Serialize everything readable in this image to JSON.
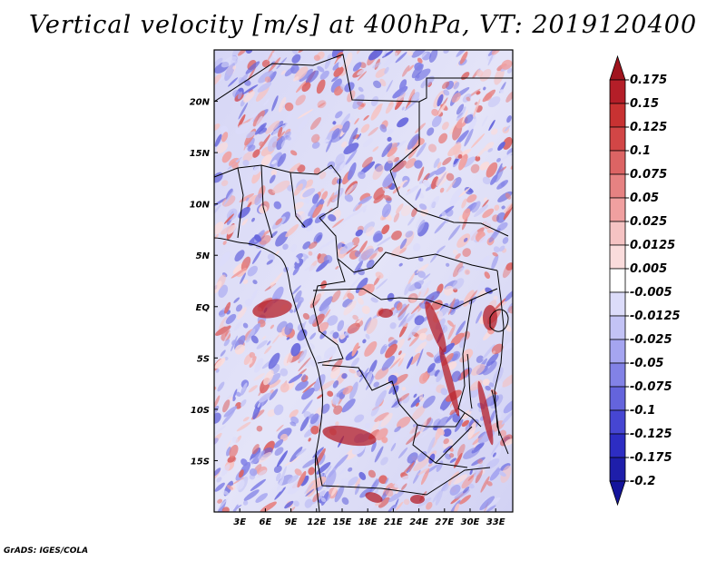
{
  "title": "Vertical velocity [m/s] at 400hPa, VT: 2019120400",
  "credit": "GrADS: IGES/COLA",
  "lat_ticks": [
    "20N",
    "15N",
    "10N",
    "5N",
    "EQ",
    "5S",
    "10S",
    "15S"
  ],
  "lat_values": [
    20,
    15,
    10,
    5,
    0,
    -5,
    -10,
    -15
  ],
  "lon_ticks": [
    "3E",
    "6E",
    "9E",
    "12E",
    "15E",
    "18E",
    "21E",
    "24E",
    "27E",
    "30E",
    "33E"
  ],
  "lon_values": [
    3,
    6,
    9,
    12,
    15,
    18,
    21,
    24,
    27,
    30,
    33
  ],
  "map_extent": {
    "lon_min": 0,
    "lon_max": 35,
    "lat_min": -20,
    "lat_max": 25
  },
  "colorbar": {
    "labels": [
      "0.175",
      "0.15",
      "0.125",
      "0.1",
      "0.075",
      "0.05",
      "0.025",
      "0.0125",
      "0.005",
      "-0.005",
      "-0.0125",
      "-0.025",
      "-0.05",
      "-0.075",
      "-0.1",
      "-0.125",
      "-0.175",
      "-0.2"
    ],
    "colors": [
      "#a0141e",
      "#b41e28",
      "#c83232",
      "#d24646",
      "#dc6464",
      "#e68282",
      "#f0a0a0",
      "#f5c3c3",
      "#fadcdc",
      "#ffffff",
      "#dcdcfa",
      "#c3c3f5",
      "#a5a5f0",
      "#8282e6",
      "#6464dc",
      "#4646d2",
      "#2d2dc3",
      "#1e1eaa",
      "#14149b"
    ]
  },
  "colors": {
    "frame": "#000000",
    "border": "#000000"
  }
}
